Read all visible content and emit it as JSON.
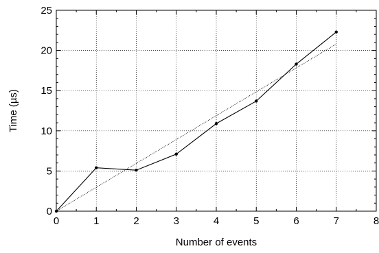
{
  "chart_data": {
    "type": "line",
    "title": "",
    "xlabel": "Number of events",
    "ylabel": "Time (µs)",
    "xlim": [
      0,
      8
    ],
    "ylim": [
      0,
      25
    ],
    "x_ticks": [
      0,
      1,
      2,
      3,
      4,
      5,
      6,
      7,
      8
    ],
    "y_ticks": [
      0,
      5,
      10,
      15,
      20,
      25
    ],
    "x_tick_labels": [
      "0",
      "1",
      "2",
      "3",
      "4",
      "5",
      "6",
      "7",
      "8"
    ],
    "y_tick_labels": [
      "0",
      "5",
      "10",
      "15",
      "20",
      "25"
    ],
    "grid": true,
    "series": [
      {
        "style": "solid-with-markers",
        "color": "#000000",
        "x": [
          0,
          1,
          2,
          3,
          4,
          5,
          6,
          7
        ],
        "y": [
          0,
          5.4,
          5.1,
          7.1,
          10.9,
          13.7,
          18.3,
          22.3
        ]
      },
      {
        "style": "dotted-fit",
        "color": "#000000",
        "x": [
          0,
          7
        ],
        "y": [
          0,
          20.8
        ]
      }
    ]
  }
}
